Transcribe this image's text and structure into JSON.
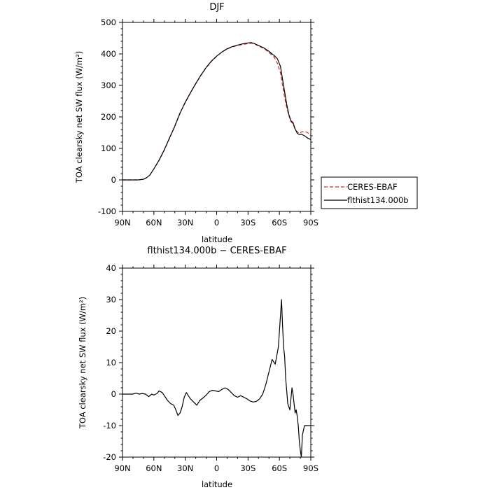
{
  "chart_data": [
    {
      "type": "line",
      "title": "DJF",
      "xlabel": "latitude",
      "ylabel": "TOA clearsky net SW flux (W/m²)",
      "xlim": [
        90,
        -90
      ],
      "ylim": [
        -100,
        500
      ],
      "x_ticks": [
        "90N",
        "60N",
        "30N",
        "0",
        "30S",
        "60S",
        "90S"
      ],
      "y_ticks": [
        "-100",
        "0",
        "100",
        "200",
        "300",
        "400",
        "500"
      ],
      "legend_position": "outside-right",
      "series": [
        {
          "name": "CERES-EBAF",
          "color": "#d62020",
          "dash": "dashed",
          "x": [
            90,
            85,
            80,
            75,
            70,
            67,
            64,
            60,
            55,
            50,
            45,
            40,
            35,
            30,
            25,
            20,
            15,
            10,
            5,
            0,
            -5,
            -10,
            -15,
            -20,
            -25,
            -30,
            -33,
            -36,
            -40,
            -45,
            -50,
            -55,
            -58,
            -61,
            -63,
            -65,
            -67,
            -69,
            -71,
            -73,
            -75,
            -77,
            -79,
            -81,
            -84,
            -87,
            -90
          ],
          "y": [
            0,
            0,
            0,
            0,
            2,
            7,
            15,
            35,
            62,
            95,
            132,
            172,
            213,
            245,
            276,
            305,
            332,
            356,
            376,
            392,
            406,
            416,
            422,
            427,
            430,
            433,
            434,
            432,
            425,
            418,
            405,
            390,
            370,
            340,
            300,
            262,
            230,
            205,
            185,
            178,
            160,
            153,
            148,
            152,
            154,
            150,
            140
          ]
        },
        {
          "name": "flthist134.000b",
          "color": "#000000",
          "dash": "solid",
          "x": [
            90,
            85,
            80,
            75,
            70,
            67,
            64,
            60,
            55,
            50,
            45,
            40,
            35,
            30,
            25,
            20,
            15,
            10,
            5,
            0,
            -5,
            -10,
            -15,
            -20,
            -25,
            -30,
            -33,
            -36,
            -40,
            -45,
            -50,
            -55,
            -58,
            -61,
            -63,
            -65,
            -67,
            -69,
            -71,
            -73,
            -75,
            -77,
            -79,
            -81,
            -84,
            -87,
            -90
          ],
          "y": [
            0,
            0,
            0,
            0,
            2,
            7,
            15,
            35,
            63,
            96,
            134,
            170,
            212,
            247,
            277,
            306,
            333,
            357,
            377,
            393,
            406,
            416,
            423,
            428,
            432,
            435,
            436,
            433,
            427,
            419,
            408,
            395,
            385,
            360,
            320,
            280,
            240,
            208,
            188,
            182,
            162,
            148,
            144,
            145,
            140,
            133,
            128
          ]
        }
      ]
    },
    {
      "type": "line",
      "title": "flthist134.000b − CERES-EBAF",
      "xlabel": "latitude",
      "ylabel": "TOA clearsky net SW flux (W/m²)",
      "xlim": [
        90,
        -90
      ],
      "ylim": [
        -20,
        40
      ],
      "x_ticks": [
        "90N",
        "60N",
        "30N",
        "0",
        "30S",
        "60S",
        "90S"
      ],
      "y_ticks": [
        "-20",
        "-10",
        "0",
        "10",
        "20",
        "30",
        "40"
      ],
      "series": [
        {
          "name": "flthist134.000b − CERES-EBAF",
          "color": "#000000",
          "dash": "solid",
          "x": [
            90,
            85,
            80,
            77,
            74,
            71,
            68,
            65,
            62,
            60,
            57,
            55,
            52,
            50,
            47,
            44,
            41,
            39,
            37,
            35,
            33,
            31,
            29,
            27,
            25,
            22,
            19,
            16,
            13,
            10,
            7,
            4,
            1,
            -2,
            -5,
            -8,
            -11,
            -14,
            -17,
            -20,
            -23,
            -26,
            -29,
            -32,
            -35,
            -38,
            -41,
            -44,
            -47,
            -50,
            -53,
            -56,
            -59,
            -61,
            -62,
            -63,
            -64,
            -65,
            -66,
            -67,
            -68,
            -70,
            -72,
            -73,
            -74,
            -75,
            -76,
            -77,
            -78,
            -79,
            -80,
            -81,
            -82,
            -84,
            -86,
            -88,
            -89,
            -90
          ],
          "y": [
            0,
            0,
            0,
            0.3,
            0,
            0.2,
            0,
            -0.8,
            0,
            -0.3,
            0.2,
            1,
            0.5,
            -0.5,
            -2,
            -3,
            -3.5,
            -5,
            -6.8,
            -6,
            -4,
            -1,
            0.5,
            -0.5,
            -1.5,
            -2.5,
            -3.5,
            -2,
            -1.2,
            -0.3,
            0.8,
            1.2,
            1,
            0.8,
            1.5,
            2,
            1.5,
            0.5,
            -0.5,
            -1,
            -0.5,
            -1,
            -1.5,
            -2.2,
            -2.5,
            -2.3,
            -1.5,
            0,
            3,
            7,
            11,
            9.5,
            15,
            25,
            30,
            22,
            15,
            12,
            5,
            1,
            -3,
            -5,
            2,
            0,
            -3,
            -6,
            -5,
            -7,
            -10,
            -15,
            -18,
            -20,
            -13,
            -10,
            -10,
            -10,
            -10,
            -10
          ]
        }
      ]
    }
  ]
}
